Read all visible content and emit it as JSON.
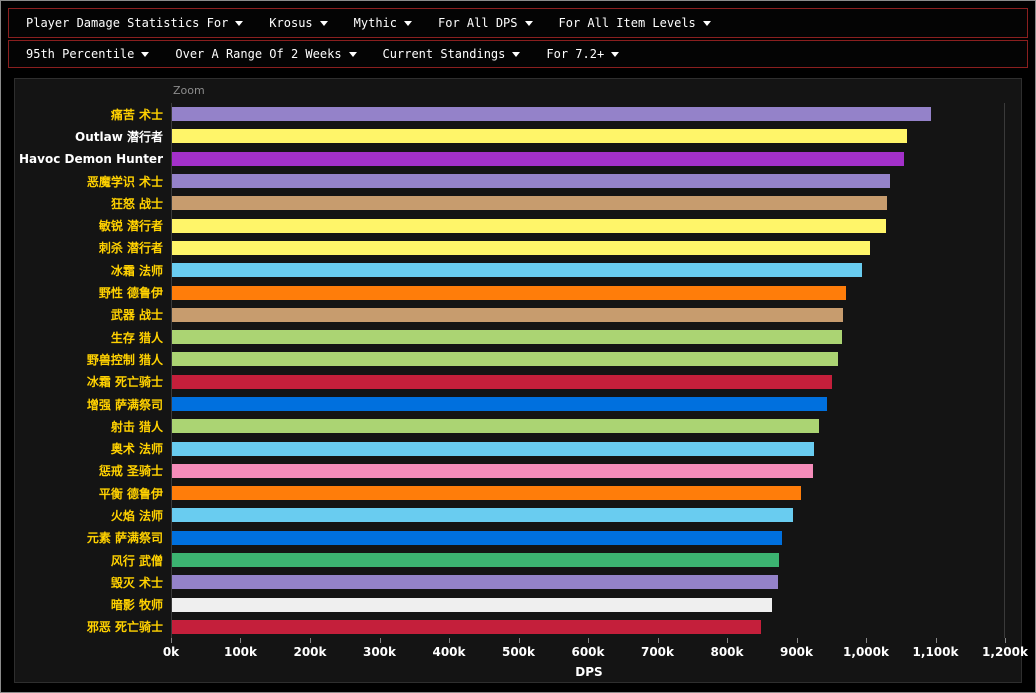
{
  "nav": {
    "primary": [
      {
        "label": "Player Damage Statistics For"
      },
      {
        "label": "Krosus"
      },
      {
        "label": "Mythic"
      },
      {
        "label": "For All DPS"
      },
      {
        "label": "For All Item Levels"
      }
    ],
    "secondary": [
      {
        "label": "95th Percentile"
      },
      {
        "label": "Over A Range Of 2 Weeks"
      },
      {
        "label": "Current Standings"
      },
      {
        "label": "For 7.2+"
      }
    ]
  },
  "colors": {
    "nav_border": "#8a1f1f",
    "label_gold": "#FFD100",
    "label_white": "#FFFFFF",
    "axis_text": "#FFFFFF",
    "zoom_text": "#8c8c8c",
    "panel_bg": "#141414"
  },
  "chart_data": {
    "type": "bar",
    "orientation": "horizontal",
    "title": "",
    "zoom_label": "Zoom",
    "xlabel": "DPS",
    "xlim": [
      0,
      1200
    ],
    "x_unit": "k",
    "grid": false,
    "x_ticks": [
      {
        "value": 0,
        "label": "0k"
      },
      {
        "value": 100,
        "label": "100k"
      },
      {
        "value": 200,
        "label": "200k"
      },
      {
        "value": 300,
        "label": "300k"
      },
      {
        "value": 400,
        "label": "400k"
      },
      {
        "value": 500,
        "label": "500k"
      },
      {
        "value": 600,
        "label": "600k"
      },
      {
        "value": 700,
        "label": "700k"
      },
      {
        "value": 800,
        "label": "800k"
      },
      {
        "value": 900,
        "label": "900k"
      },
      {
        "value": 1000,
        "label": "1,000k"
      },
      {
        "value": 1100,
        "label": "1,100k"
      },
      {
        "value": 1200,
        "label": "1,200k"
      }
    ],
    "class_colors": {
      "warlock": "#9482C9",
      "rogue": "#FFF569",
      "demonhunter": "#A330C9",
      "warrior": "#C79C6E",
      "mage": "#69CCF0",
      "druid": "#FF7D0A",
      "hunter": "#ABD473",
      "deathknight": "#C41F3B",
      "shaman": "#0070DE",
      "paladin": "#F58CBA",
      "monk": "#3CB371",
      "priest": "#EFEFEF"
    },
    "rows": [
      {
        "label": "痛苦 术士",
        "class": "warlock",
        "value_k": 1093,
        "emphasis": false
      },
      {
        "label": "Outlaw 潜行者",
        "class": "rogue",
        "value_k": 1059,
        "emphasis": true
      },
      {
        "label": "Havoc Demon Hunter",
        "class": "demonhunter",
        "value_k": 1055,
        "emphasis": true
      },
      {
        "label": "恶魔学识 术士",
        "class": "warlock",
        "value_k": 1035,
        "emphasis": false
      },
      {
        "label": "狂怒 战士",
        "class": "warrior",
        "value_k": 1030,
        "emphasis": false
      },
      {
        "label": "敏锐 潜行者",
        "class": "rogue",
        "value_k": 1029,
        "emphasis": false
      },
      {
        "label": "刺杀 潜行者",
        "class": "rogue",
        "value_k": 1006,
        "emphasis": false
      },
      {
        "label": "冰霜 法师",
        "class": "mage",
        "value_k": 994,
        "emphasis": false
      },
      {
        "label": "野性 德鲁伊",
        "class": "druid",
        "value_k": 971,
        "emphasis": false
      },
      {
        "label": "武器 战士",
        "class": "warrior",
        "value_k": 967,
        "emphasis": false
      },
      {
        "label": "生存 猎人",
        "class": "hunter",
        "value_k": 966,
        "emphasis": false
      },
      {
        "label": "野兽控制 猎人",
        "class": "hunter",
        "value_k": 960,
        "emphasis": false
      },
      {
        "label": "冰霜 死亡骑士",
        "class": "deathknight",
        "value_k": 951,
        "emphasis": false
      },
      {
        "label": "增强 萨满祭司",
        "class": "shaman",
        "value_k": 944,
        "emphasis": false
      },
      {
        "label": "射击 猎人",
        "class": "hunter",
        "value_k": 933,
        "emphasis": false
      },
      {
        "label": "奥术 法师",
        "class": "mage",
        "value_k": 925,
        "emphasis": false
      },
      {
        "label": "惩戒 圣骑士",
        "class": "paladin",
        "value_k": 924,
        "emphasis": false
      },
      {
        "label": "平衡 德鲁伊",
        "class": "druid",
        "value_k": 907,
        "emphasis": false
      },
      {
        "label": "火焰 法师",
        "class": "mage",
        "value_k": 895,
        "emphasis": false
      },
      {
        "label": "元素 萨满祭司",
        "class": "shaman",
        "value_k": 879,
        "emphasis": false
      },
      {
        "label": "风行 武僧",
        "class": "monk",
        "value_k": 875,
        "emphasis": false
      },
      {
        "label": "毁灭 术士",
        "class": "warlock",
        "value_k": 873,
        "emphasis": false
      },
      {
        "label": "暗影 牧师",
        "class": "priest",
        "value_k": 865,
        "emphasis": false
      },
      {
        "label": "邪恶 死亡骑士",
        "class": "deathknight",
        "value_k": 849,
        "emphasis": false
      }
    ]
  }
}
